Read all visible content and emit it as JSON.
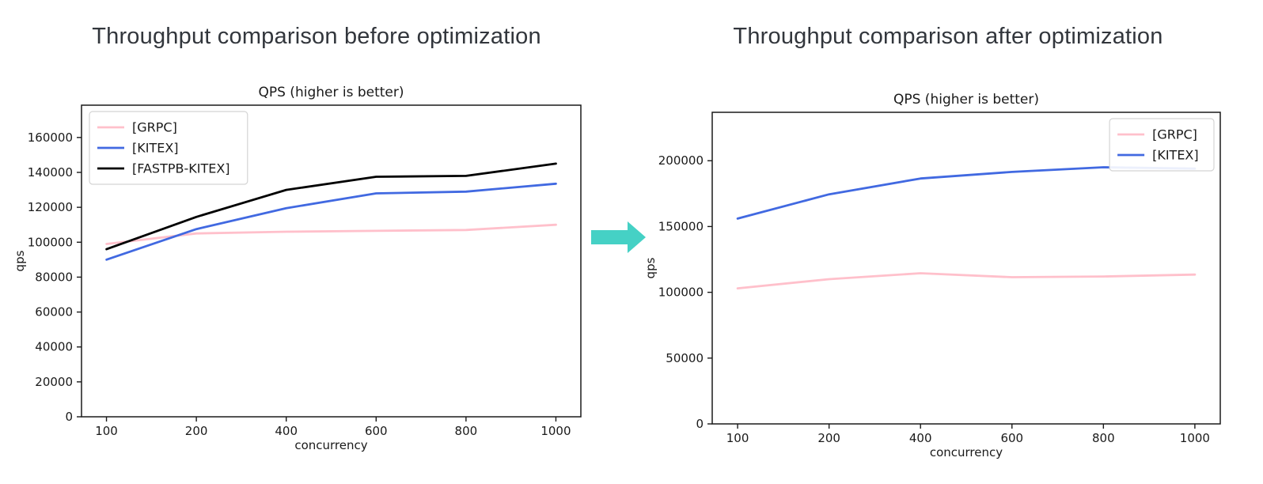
{
  "page": {
    "background": "#ffffff"
  },
  "headings": {
    "before": "Throughput comparison before optimization",
    "after": "Throughput comparison after optimization"
  },
  "arrow": {
    "color": "#45D1C5"
  },
  "chart_data": [
    {
      "type": "line",
      "title": "QPS (higher is better)",
      "xlabel": "concurrency",
      "ylabel": "qps",
      "categories": [
        100,
        200,
        400,
        600,
        800,
        1000
      ],
      "series": [
        {
          "name": "[GRPC]",
          "color": "#FFC0CB",
          "values": [
            99000,
            105000,
            106000,
            106500,
            107000,
            110000
          ]
        },
        {
          "name": "[KITEX]",
          "color": "#4169E1",
          "values": [
            90000,
            107500,
            119500,
            128000,
            129000,
            133500
          ]
        },
        {
          "name": "[FASTPB-KITEX]",
          "color": "#000000",
          "values": [
            96000,
            114500,
            130000,
            137500,
            138000,
            145000
          ]
        }
      ],
      "y_ticks": [
        0,
        20000,
        40000,
        60000,
        80000,
        100000,
        120000,
        140000,
        160000
      ],
      "ylim": [
        0,
        178500
      ],
      "legend_position": "upper-left",
      "grid": false
    },
    {
      "type": "line",
      "title": "QPS (higher is better)",
      "xlabel": "concurrency",
      "ylabel": "qps",
      "categories": [
        100,
        200,
        400,
        600,
        800,
        1000
      ],
      "series": [
        {
          "name": "[GRPC]",
          "color": "#FFC0CB",
          "values": [
            103000,
            110000,
            114500,
            111500,
            112000,
            113500
          ]
        },
        {
          "name": "[KITEX]",
          "color": "#4169E1",
          "values": [
            156000,
            174500,
            186500,
            191500,
            195000,
            194000
          ]
        }
      ],
      "y_ticks": [
        0,
        50000,
        100000,
        150000,
        200000
      ],
      "ylim": [
        0,
        236800
      ],
      "legend_position": "upper-right",
      "grid": false
    }
  ]
}
